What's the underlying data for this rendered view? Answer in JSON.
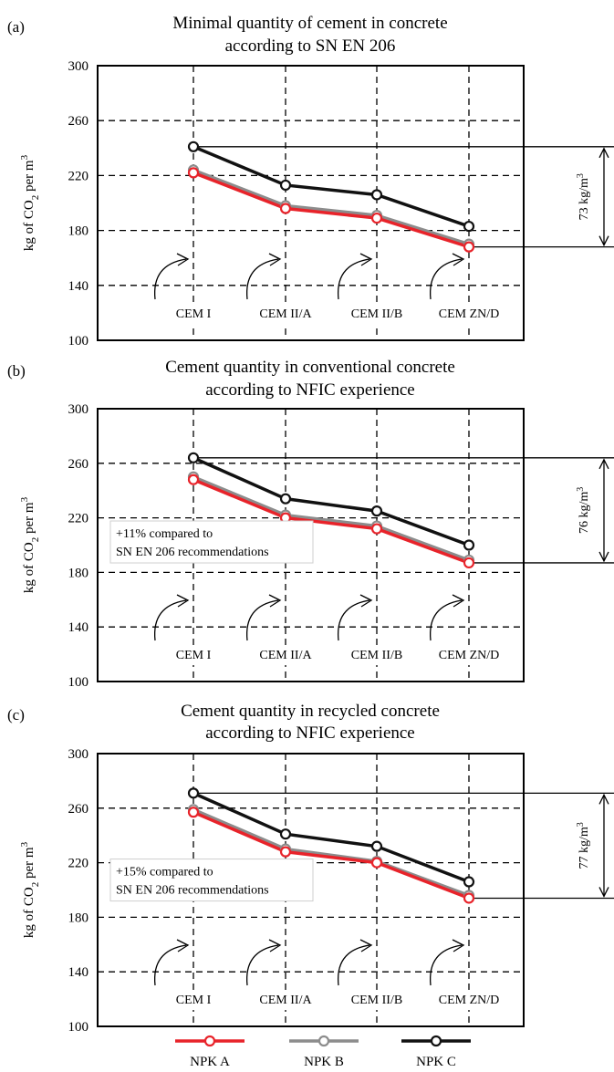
{
  "colors": {
    "npk_a": "#e8232a",
    "npk_b": "#8c8c8c",
    "npk_c": "#111111"
  },
  "chart_data": [
    {
      "type": "line",
      "panel_label": "(a)",
      "title_line1": "Minimal quantity of cement in concrete",
      "title_line2": "according to  SN EN 206",
      "ylabel_main": "kg of CO",
      "ylabel_sub": "2",
      "ylabel_tail": " per m",
      "ylabel_sup": "3",
      "ylim": [
        100,
        300
      ],
      "yticks": [
        "100",
        "140",
        "180",
        "220",
        "260",
        "300"
      ],
      "grid": true,
      "categories": [
        "CEM I",
        "CEM II/A",
        "CEM II/B",
        "CEM ZN/D"
      ],
      "series": [
        {
          "name": "NPK A",
          "values": [
            222,
            196,
            189,
            168
          ]
        },
        {
          "name": "NPK B",
          "values": [
            224,
            198,
            191,
            170
          ]
        },
        {
          "name": "NPK C",
          "values": [
            241,
            213,
            206,
            183
          ]
        }
      ],
      "range_label": "73 kg/m",
      "range_sup": "3",
      "note_line1": "",
      "note_line2": ""
    },
    {
      "type": "line",
      "panel_label": "(b)",
      "title_line1": "Cement quantity in conventional concrete",
      "title_line2": "according to NFIC experience",
      "ylabel_main": "kg of CO",
      "ylabel_sub": "2",
      "ylabel_tail": " per m",
      "ylabel_sup": "3",
      "ylim": [
        100,
        300
      ],
      "yticks": [
        "100",
        "140",
        "180",
        "220",
        "260",
        "300"
      ],
      "grid": true,
      "categories": [
        "CEM I",
        "CEM II/A",
        "CEM II/B",
        "CEM ZN/D"
      ],
      "series": [
        {
          "name": "NPK A",
          "values": [
            248,
            220,
            212,
            187
          ]
        },
        {
          "name": "NPK B",
          "values": [
            250,
            222,
            214,
            189
          ]
        },
        {
          "name": "NPK C",
          "values": [
            264,
            234,
            225,
            200
          ]
        }
      ],
      "range_label": "76 kg/m",
      "range_sup": "3",
      "note_line1": "+11% compared to",
      "note_line2": "SN EN 206 recommendations"
    },
    {
      "type": "line",
      "panel_label": "(c)",
      "title_line1": "Cement quantity in recycled concrete",
      "title_line2": "according to NFIC experience",
      "ylabel_main": "kg of CO",
      "ylabel_sub": "2",
      "ylabel_tail": " per m",
      "ylabel_sup": "3",
      "ylim": [
        100,
        300
      ],
      "yticks": [
        "100",
        "140",
        "180",
        "220",
        "260",
        "300"
      ],
      "grid": true,
      "categories": [
        "CEM I",
        "CEM II/A",
        "CEM II/B",
        "CEM ZN/D"
      ],
      "series": [
        {
          "name": "NPK A",
          "values": [
            257,
            228,
            220,
            194
          ]
        },
        {
          "name": "NPK B",
          "values": [
            259,
            230,
            221,
            196
          ]
        },
        {
          "name": "NPK C",
          "values": [
            271,
            241,
            232,
            206
          ]
        }
      ],
      "range_label": "77 kg/m",
      "range_sup": "3",
      "note_line1": "+15% compared to",
      "note_line2": "SN EN 206 recommendations"
    }
  ],
  "legend": {
    "placement": "bottom",
    "items": [
      "NPK A",
      "NPK B",
      "NPK C"
    ]
  }
}
